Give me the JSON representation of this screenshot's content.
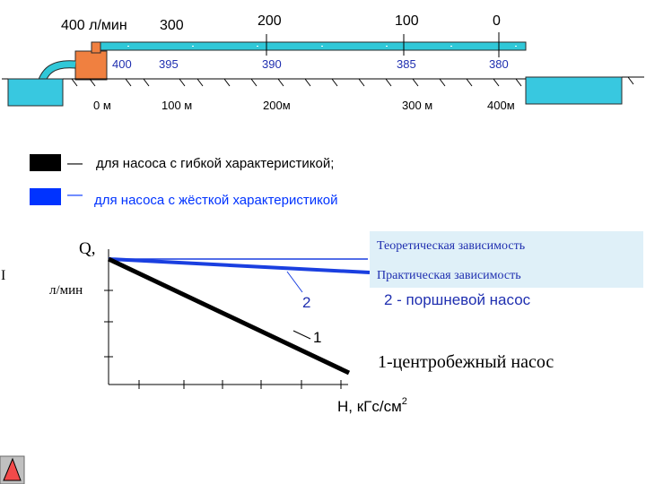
{
  "pipeline": {
    "flow_labels": [
      "400 л/мин",
      "300",
      "200",
      "100",
      "0"
    ],
    "pressure_labels": [
      "400",
      "395",
      "390",
      "385",
      "380"
    ],
    "distance_labels": [
      "0 м",
      "100 м",
      "200м",
      "300 м",
      "400м"
    ]
  },
  "legend": {
    "items": [
      {
        "dash": "—",
        "label": "для насоса с гибкой характеристикой;",
        "color": "#000000"
      },
      {
        "dash": "—",
        "label": "для насоса с жёсткой характеристикой",
        "color": "#0033ff"
      }
    ]
  },
  "graph": {
    "y_label": "Q,",
    "y_unit": "л/мин",
    "x_label": "H, кГс/см",
    "x_label_sup": "2",
    "side_mark": "I",
    "curve_labels": {
      "two": "2",
      "one": "1"
    },
    "box": {
      "theory": "Теоретическая зависимость",
      "practice": "Практическая зависимость"
    },
    "piston_pump": "2 - поршневой насос",
    "centrifugal_pump": "1-центробежный насос"
  },
  "colors": {
    "pipe": "#30c8d8",
    "tank": "#38c8e0",
    "pump": "#f08040",
    "blue_line": "#1a3fe0",
    "label_blue": "#1f2fb0",
    "box_fill": "#dff0f8"
  },
  "icons": {
    "back": "back-arrow-icon"
  }
}
